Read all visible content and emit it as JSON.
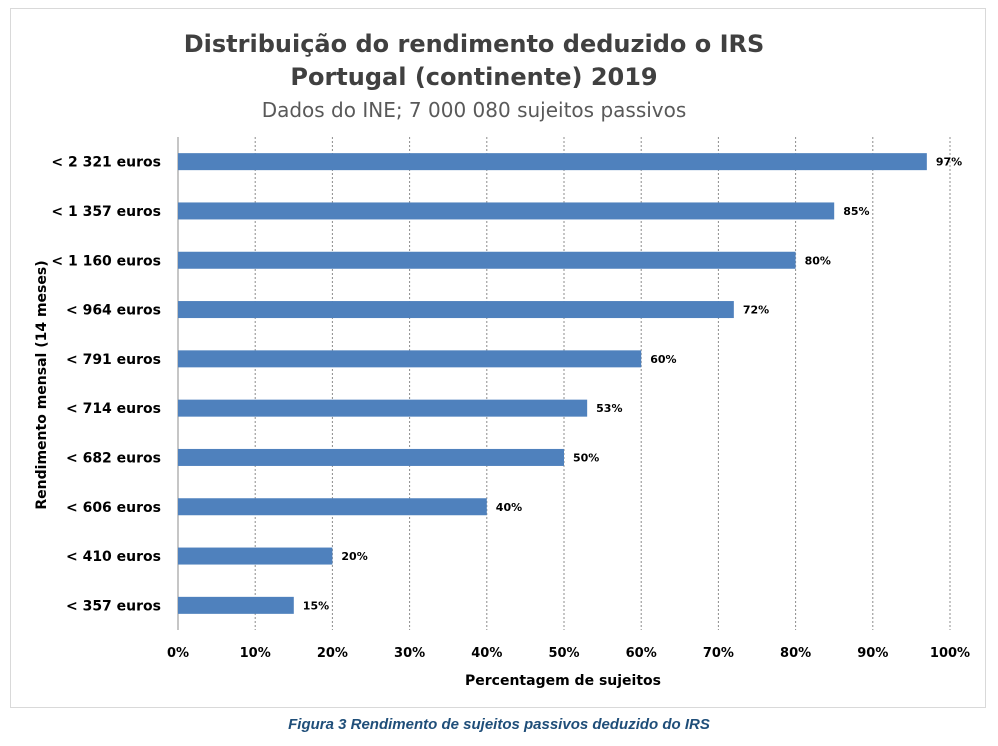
{
  "chart_data": {
    "type": "bar",
    "orientation": "horizontal",
    "title": "Distribuição do rendimento deduzido o IRS",
    "title_line2": "Portugal (continente) 2019",
    "subtitle": "Dados do INE; 7 000 080 sujeitos passivos",
    "xlabel": "Percentagem de sujeitos",
    "ylabel": "Rendimento mensal (14 meses)",
    "categories": [
      "< 2 321 euros",
      "< 1 357  euros",
      "< 1 160 euros",
      "< 964  euros",
      "< 791 euros",
      "< 714  euros",
      "< 682 euros",
      "< 606 euros",
      "< 410 euros",
      "< 357 euros"
    ],
    "values": [
      97,
      85,
      80,
      72,
      60,
      53,
      50,
      40,
      20,
      15
    ],
    "data_labels": [
      "97%",
      "85%",
      "80%",
      "72%",
      "60%",
      "53%",
      "50%",
      "40%",
      "20%",
      "15%"
    ],
    "xlim": [
      0,
      100
    ],
    "xticks": [
      "0%",
      "10%",
      "20%",
      "30%",
      "40%",
      "50%",
      "60%",
      "70%",
      "80%",
      "90%",
      "100%"
    ],
    "grid": "vertical dashed",
    "bar_color": "#4f81bd"
  },
  "caption": "Figura 3 Rendimento de sujeitos passivos deduzido do IRS"
}
